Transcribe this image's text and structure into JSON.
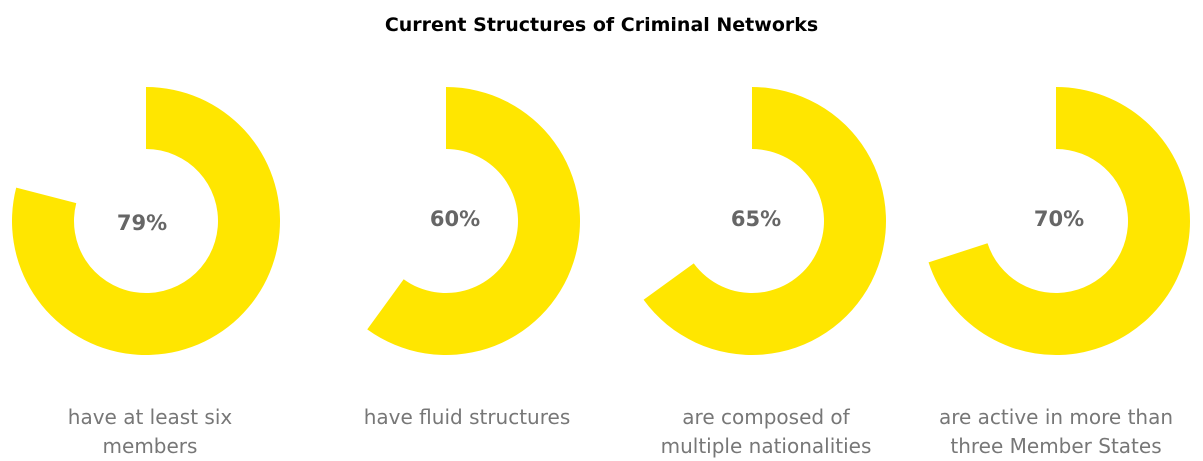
{
  "chart_data": {
    "type": "donut",
    "title": "Current Structures of Criminal Networks",
    "color": "#FFE600",
    "label_color": "#666666",
    "items": [
      {
        "value": 79,
        "label": "79%",
        "caption": "have at least six\nmembers"
      },
      {
        "value": 60,
        "label": "60%",
        "caption": "have fluid structures"
      },
      {
        "value": 65,
        "label": "65%",
        "caption": "are composed of\nmultiple nationalities"
      },
      {
        "value": 70,
        "label": "70%",
        "caption": "are active in more than\nthree Member States"
      }
    ]
  }
}
